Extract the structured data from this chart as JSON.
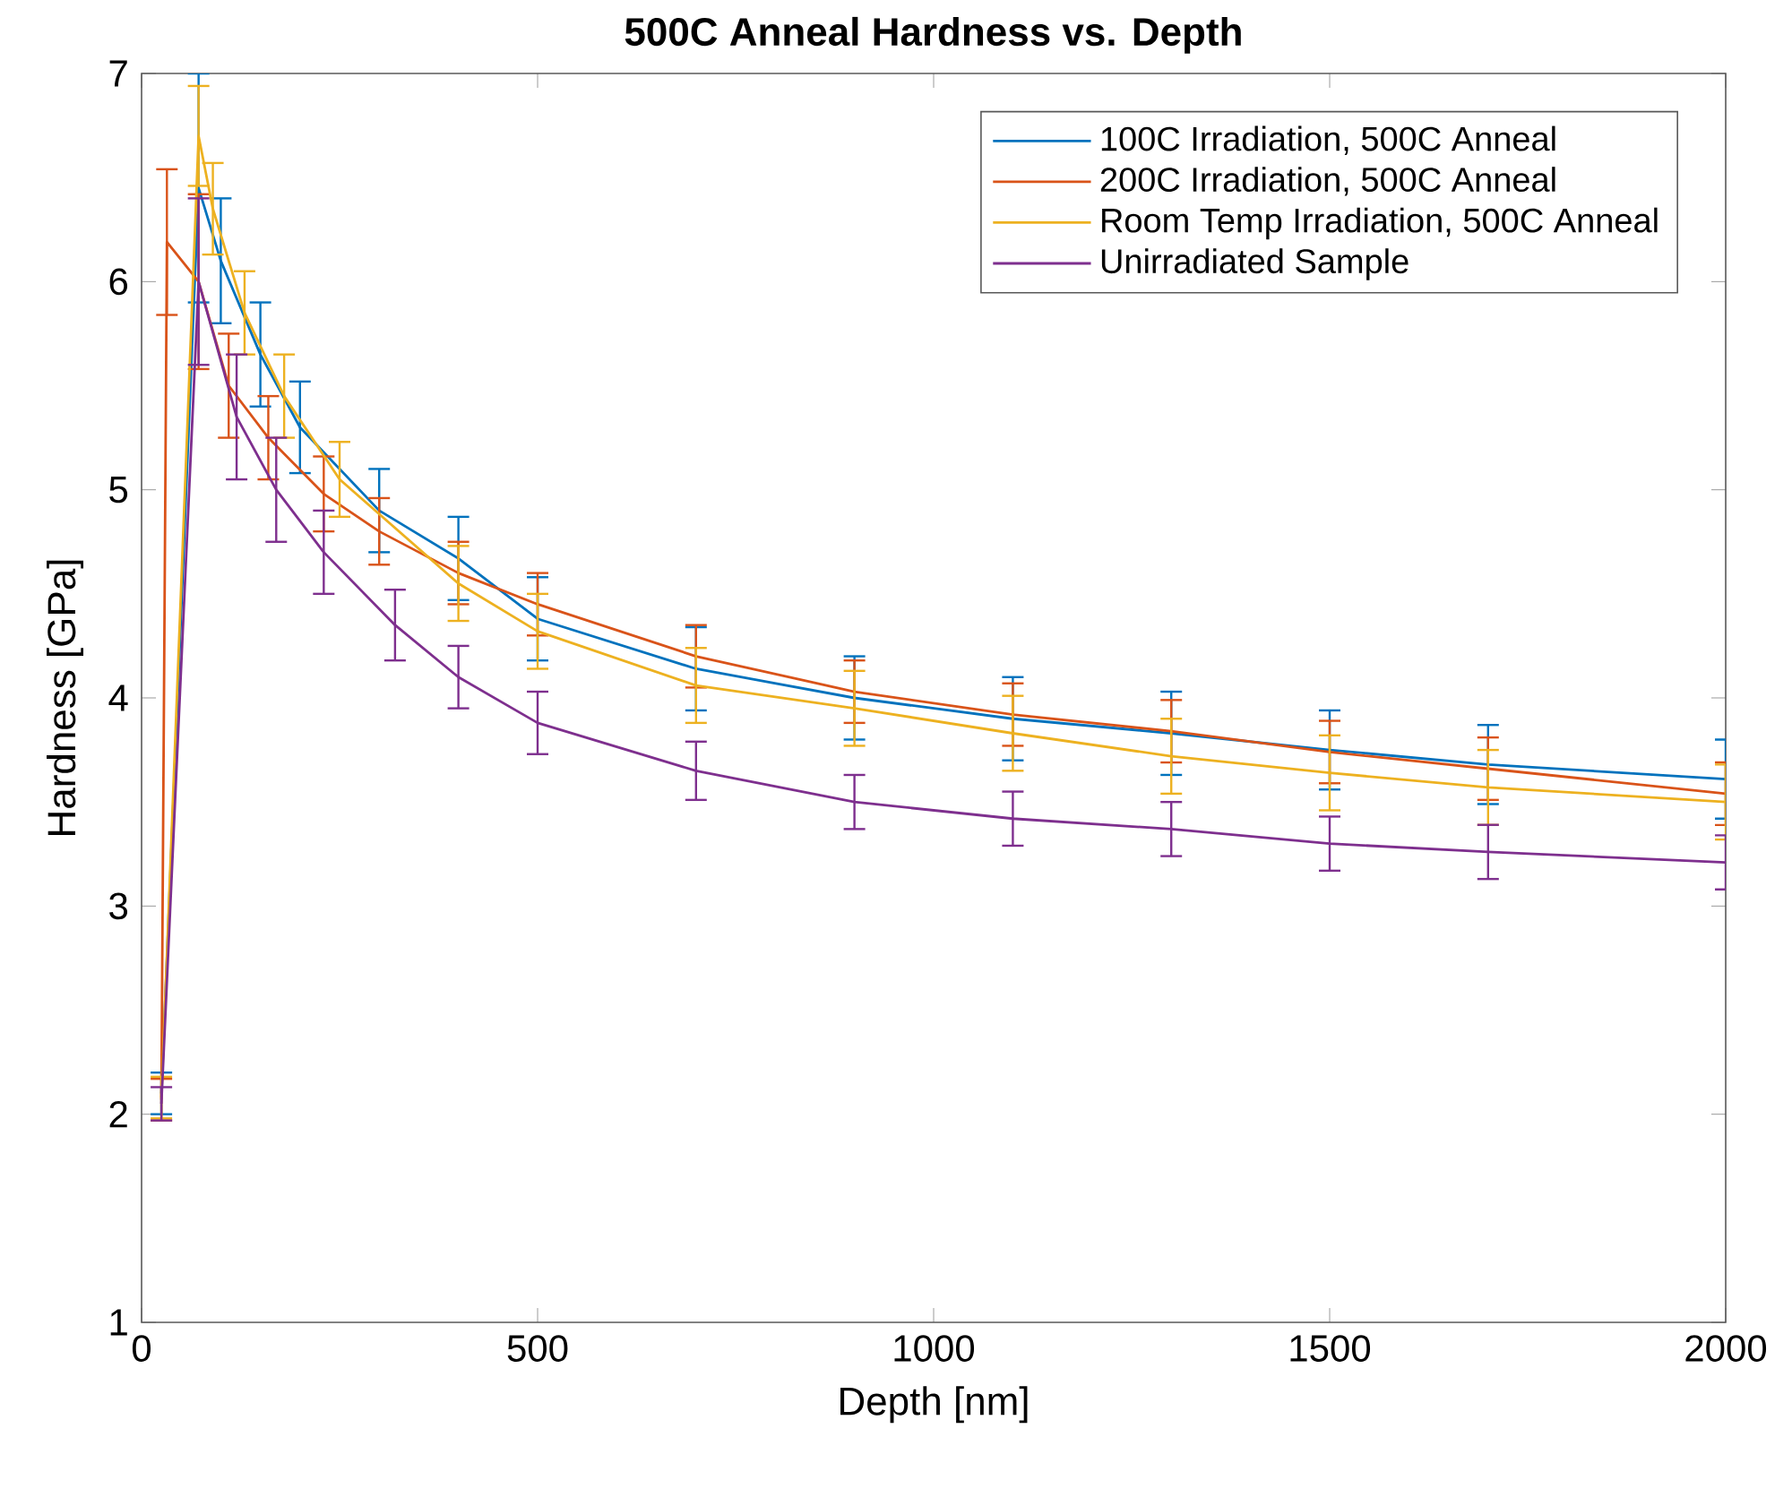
{
  "chart_data": {
    "type": "line",
    "title": "500C Anneal Hardness vs. Depth",
    "xlabel": "Depth [nm]",
    "ylabel": "Hardness [GPa]",
    "xlim": [
      0,
      2000
    ],
    "ylim": [
      1,
      7
    ],
    "xticks": [
      0,
      500,
      1000,
      1500,
      2000
    ],
    "yticks": [
      1,
      2,
      3,
      4,
      5,
      6,
      7
    ],
    "legend": "top right",
    "marker": "none",
    "line_style": "solid",
    "series": [
      {
        "name": "100C Irradiation, 500C Anneal",
        "color": "#0072bd",
        "x": [
          25,
          72,
          100,
          150,
          200,
          300,
          400,
          500,
          700,
          900,
          1100,
          1300,
          1500,
          1700,
          2000
        ],
        "values": [
          2.1,
          6.45,
          6.1,
          5.65,
          5.3,
          4.9,
          4.67,
          4.38,
          4.14,
          4.0,
          3.9,
          3.83,
          3.75,
          3.68,
          3.61
        ],
        "errors": [
          0.1,
          0.55,
          0.3,
          0.25,
          0.22,
          0.2,
          0.2,
          0.2,
          0.2,
          0.2,
          0.2,
          0.2,
          0.19,
          0.19,
          0.19
        ]
      },
      {
        "name": "200C Irradiation, 500C Anneal",
        "color": "#d95319",
        "x": [
          25,
          32,
          72,
          110,
          160,
          230,
          300,
          400,
          500,
          700,
          900,
          1100,
          1300,
          1500,
          1700,
          2000
        ],
        "values": [
          2.07,
          6.19,
          6.0,
          5.5,
          5.25,
          4.98,
          4.8,
          4.6,
          4.45,
          4.2,
          4.03,
          3.92,
          3.84,
          3.74,
          3.66,
          3.54
        ],
        "errors": [
          0.1,
          0.35,
          0.42,
          0.25,
          0.2,
          0.18,
          0.16,
          0.15,
          0.15,
          0.15,
          0.15,
          0.15,
          0.15,
          0.15,
          0.15,
          0.15
        ]
      },
      {
        "name": "Room Temp Irradiation, 500C Anneal",
        "color": "#edb120",
        "x": [
          25,
          72,
          90,
          130,
          180,
          250,
          400,
          500,
          700,
          900,
          1100,
          1300,
          1500,
          1700,
          2000
        ],
        "values": [
          2.08,
          6.7,
          6.35,
          5.85,
          5.45,
          5.05,
          4.55,
          4.32,
          4.06,
          3.95,
          3.83,
          3.72,
          3.64,
          3.57,
          3.5
        ],
        "errors": [
          0.1,
          0.24,
          0.22,
          0.2,
          0.2,
          0.18,
          0.18,
          0.18,
          0.18,
          0.18,
          0.18,
          0.18,
          0.18,
          0.18,
          0.18
        ]
      },
      {
        "name": "Unirradiated Sample",
        "color": "#7e2f8e",
        "x": [
          25,
          72,
          120,
          170,
          230,
          320,
          400,
          500,
          700,
          900,
          1100,
          1300,
          1500,
          1700,
          2000
        ],
        "values": [
          2.05,
          6.0,
          5.35,
          5.0,
          4.7,
          4.35,
          4.1,
          3.88,
          3.65,
          3.5,
          3.42,
          3.37,
          3.3,
          3.26,
          3.21
        ],
        "errors": [
          0.08,
          0.4,
          0.3,
          0.25,
          0.2,
          0.17,
          0.15,
          0.15,
          0.14,
          0.13,
          0.13,
          0.13,
          0.13,
          0.13,
          0.13
        ]
      }
    ]
  }
}
